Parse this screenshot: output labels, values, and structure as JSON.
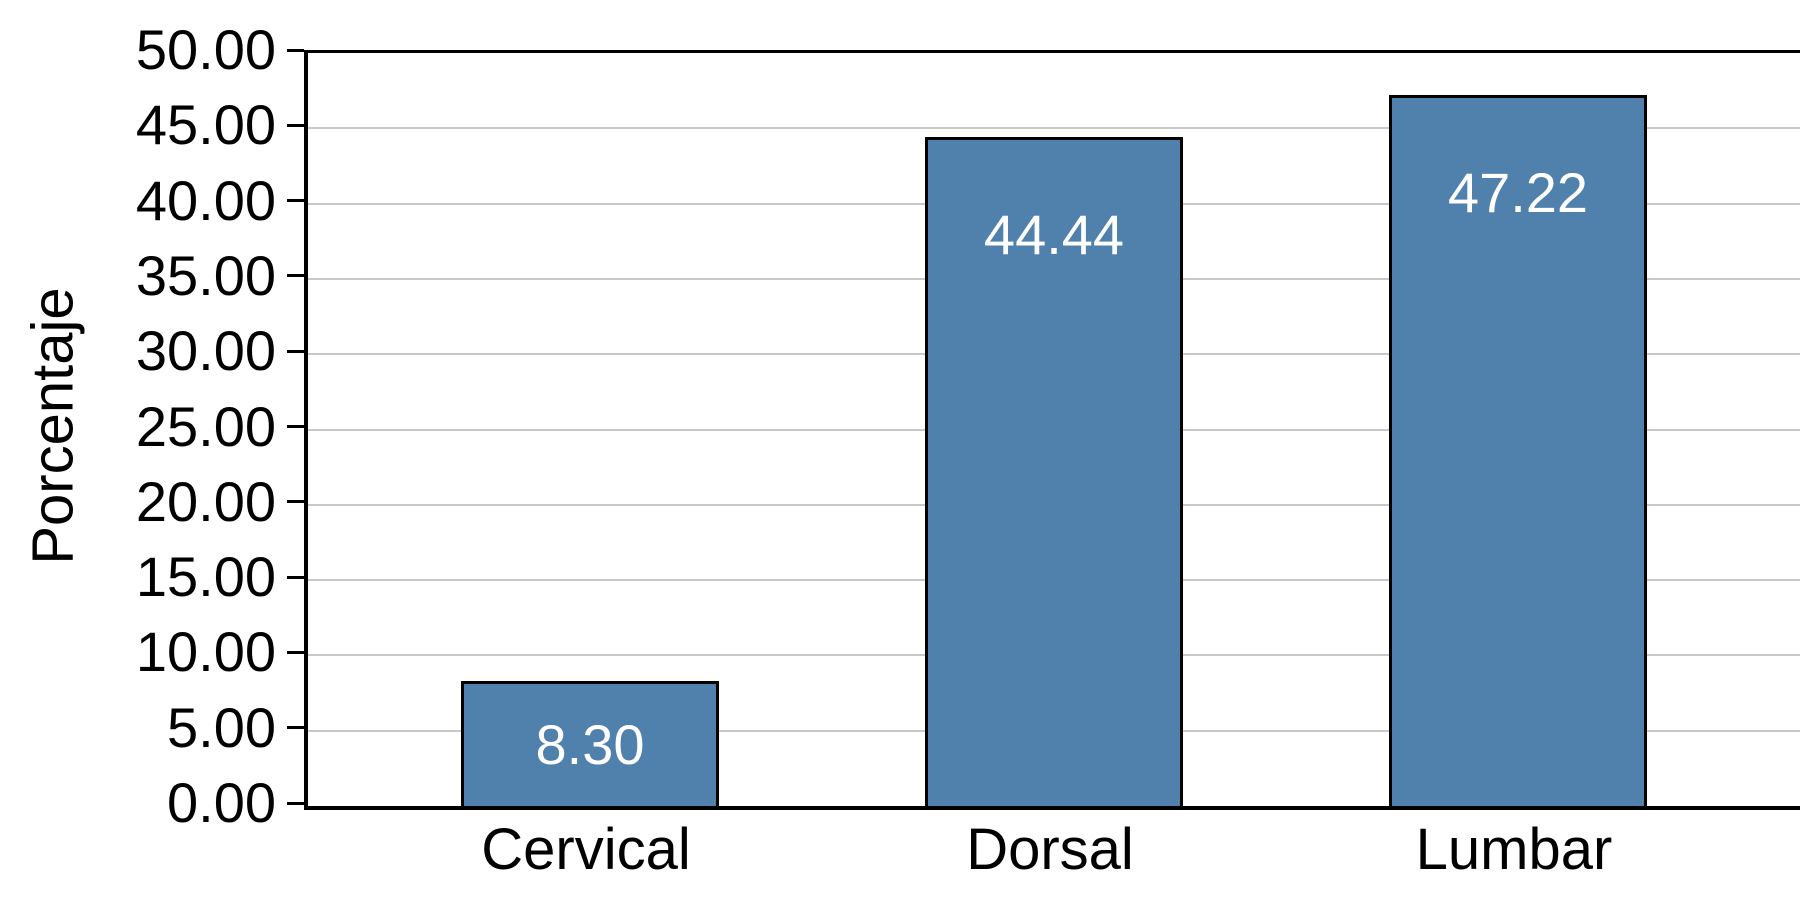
{
  "chart_data": {
    "type": "bar",
    "title": "",
    "categories": [
      "Cervical",
      "Dorsal",
      "Lumbar"
    ],
    "values": [
      8.3,
      44.44,
      47.22
    ],
    "bar_labels": [
      "8.30",
      "44.44",
      "47.22"
    ],
    "xlabel": "",
    "ylabel": "Porcentaje",
    "ylim": [
      0,
      50
    ],
    "ytick_step": 5,
    "ytick_labels": [
      "0.00",
      "5.00",
      "10.00",
      "15.00",
      "20.00",
      "25.00",
      "30.00",
      "35.00",
      "40.00",
      "45.00",
      "50.00"
    ],
    "grid": true,
    "legend": false,
    "layout_hints": {
      "gridlines": "horizontal, light gray, every 5 units",
      "plot_border": "black rectangle around plot area",
      "bar_label_position": "inside end (centered when bar is short)"
    },
    "colors": {
      "bar_fill": "#5080AC",
      "bar_border": "#000000",
      "gridline": "#C8C8C8",
      "axis": "#000000",
      "bar_label_text": "#FFFFFF",
      "axis_text": "#000000",
      "background": "#FFFFFF"
    }
  }
}
